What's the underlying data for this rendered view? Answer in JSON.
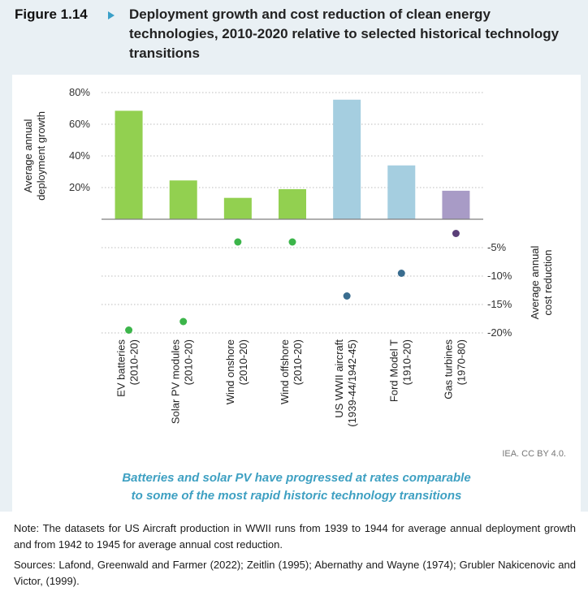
{
  "figure": {
    "label": "Figure 1.14",
    "title": "Deployment growth and cost reduction of clean energy technologies, 2010-2020 relative to selected historical technology transitions"
  },
  "chart_data": {
    "type": "bar",
    "categories": [
      "EV batteries (2010-20)",
      "Solar PV modules (2010-20)",
      "Wind onshore (2010-20)",
      "Wind offshore (2010-20)",
      "US WWII aircraft (1939-44/1942-45)",
      "Ford Model T (1910-20)",
      "Gas turbines (1970-80)"
    ],
    "category_lines": [
      [
        "EV batteries",
        "(2010-20)"
      ],
      [
        "Solar PV modules",
        "(2010-20)"
      ],
      [
        "Wind onshore",
        "(2010-20)"
      ],
      [
        "Wind offshore",
        "(2010-20)"
      ],
      [
        "US WWII aircraft",
        "(1939-44/1942-45)"
      ],
      [
        "Ford Model T",
        "(1910-20)"
      ],
      [
        "Gas turbines",
        "(1970-80)"
      ]
    ],
    "series": [
      {
        "kind": "bar",
        "axis": "left",
        "values": [
          68.5,
          24.5,
          13.5,
          19,
          75.5,
          34,
          18
        ],
        "colors": [
          "#92d050",
          "#92d050",
          "#92d050",
          "#92d050",
          "#a5cee0",
          "#a5cee0",
          "#a89bc6"
        ]
      },
      {
        "kind": "point",
        "axis": "right",
        "values": [
          -19.5,
          -18,
          -4,
          -4,
          -13.5,
          -9.5,
          -2.5
        ],
        "colors": [
          "#3cb54a",
          "#3cb54a",
          "#3cb54a",
          "#3cb54a",
          "#3a6d8f",
          "#3a6d8f",
          "#5a3f78"
        ]
      }
    ],
    "ylabel": "Average annual deployment growth",
    "ylabel_lines": [
      "Average annual",
      "deployment growth"
    ],
    "ylim": [
      0,
      80
    ],
    "yticks": [
      "20%",
      "40%",
      "60%",
      "80%"
    ],
    "y2label": "Average annual cost reduction",
    "y2label_lines": [
      "Average annual",
      "cost reduction"
    ],
    "y2lim": [
      -20,
      0
    ],
    "y2ticks": [
      "-5%",
      "-10%",
      "-15%",
      "-20%"
    ],
    "grid": true
  },
  "credit": "IEA. CC BY 4.0.",
  "takeaway_lines": [
    "Batteries and solar PV have progressed at rates comparable",
    "to some of the most rapid historic technology transitions"
  ],
  "note": "Note: The datasets for US Aircraft production in WWII runs from 1939 to 1944 for average annual deployment growth and from 1942 to 1945 for average annual cost reduction.",
  "sources": "Sources: Lafond, Greenwald and Farmer (2022); Zeitlin (1995); Abernathy and Wayne (1974); Grubler Nakicenovic and Victor, (1999)."
}
